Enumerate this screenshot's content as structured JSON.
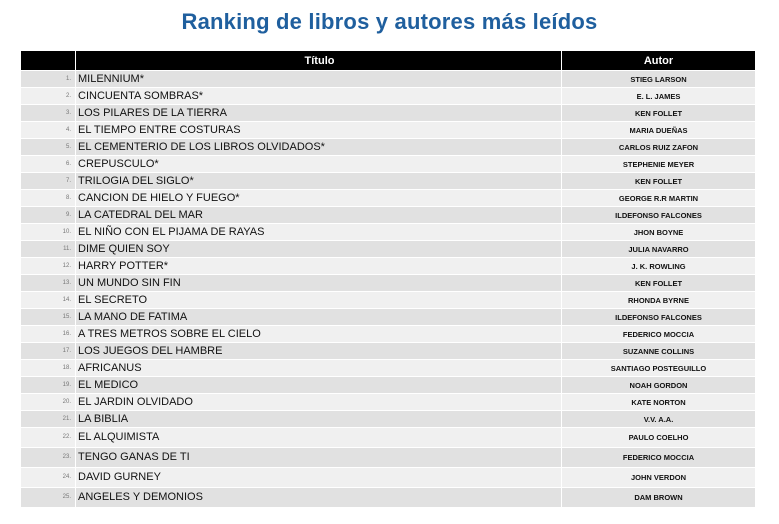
{
  "title": "Ranking de libros y autores más leídos",
  "table": {
    "headers": {
      "num": "",
      "titulo": "Título",
      "autor": "Autor"
    },
    "rows": [
      {
        "n": "1.",
        "titulo": "MILENNIUM*",
        "autor": "STIEG LARSON"
      },
      {
        "n": "2.",
        "titulo": "CINCUENTA SOMBRAS*",
        "autor": "E. L. JAMES"
      },
      {
        "n": "3.",
        "titulo": "LOS PILARES DE LA TIERRA",
        "autor": "KEN FOLLET"
      },
      {
        "n": "4.",
        "titulo": "EL TIEMPO ENTRE COSTURAS",
        "autor": "MARIA DUEÑAS"
      },
      {
        "n": "5.",
        "titulo": "EL CEMENTERIO DE LOS LIBROS OLVIDADOS*",
        "autor": "CARLOS RUIZ ZAFON"
      },
      {
        "n": "6.",
        "titulo": "CREPUSCULO*",
        "autor": "STEPHENIE MEYER"
      },
      {
        "n": "7.",
        "titulo": "TRILOGIA DEL SIGLO*",
        "autor": "KEN FOLLET"
      },
      {
        "n": "8.",
        "titulo": "CANCION DE HIELO Y FUEGO*",
        "autor": "GEORGE R.R MARTIN"
      },
      {
        "n": "9.",
        "titulo": "LA CATEDRAL DEL MAR",
        "autor": "ILDEFONSO FALCONES"
      },
      {
        "n": "10.",
        "titulo": "EL NIÑO CON EL PIJAMA DE RAYAS",
        "autor": "JHON BOYNE"
      },
      {
        "n": "11.",
        "titulo": "DIME QUIEN SOY",
        "autor": "JULIA NAVARRO"
      },
      {
        "n": "12.",
        "titulo": "HARRY POTTER*",
        "autor": "J. K. ROWLING"
      },
      {
        "n": "13.",
        "titulo": "UN MUNDO SIN  FIN",
        "autor": "KEN FOLLET"
      },
      {
        "n": "14.",
        "titulo": "EL SECRETO",
        "autor": "RHONDA BYRNE"
      },
      {
        "n": "15.",
        "titulo": "LA MANO DE FATIMA",
        "autor": "ILDEFONSO FALCONES"
      },
      {
        "n": "16.",
        "titulo": "A TRES METROS SOBRE EL CIELO",
        "autor": "FEDERICO MOCCIA"
      },
      {
        "n": "17.",
        "titulo": "LOS JUEGOS DEL HAMBRE",
        "autor": "SUZANNE COLLINS"
      },
      {
        "n": "18.",
        "titulo": "AFRICANUS",
        "autor": "SANTIAGO POSTEGUILLO"
      },
      {
        "n": "19.",
        "titulo": "EL MEDICO",
        "autor": "NOAH GORDON"
      },
      {
        "n": "20.",
        "titulo": "EL JARDIN OLVIDADO",
        "autor": "KATE NORTON"
      },
      {
        "n": "21.",
        "titulo": "LA BIBLIA",
        "autor": "V.V. A.A."
      },
      {
        "n": "22.",
        "titulo": "EL ALQUIMISTA",
        "autor": "PAULO COELHO"
      },
      {
        "n": "23.",
        "titulo": "TENGO GANAS DE TI",
        "autor": "FEDERICO MOCCIA"
      },
      {
        "n": "24.",
        "titulo": "DAVID GURNEY",
        "autor": "JOHN VERDON"
      },
      {
        "n": "25.",
        "titulo": "ANGELES Y DEMONIOS",
        "autor": "DAM BROWN"
      }
    ]
  },
  "colors": {
    "title": "#1f5f9e",
    "header_bg": "#000000",
    "row_odd": "#e1e1e1",
    "row_even": "#f0f0f0"
  }
}
